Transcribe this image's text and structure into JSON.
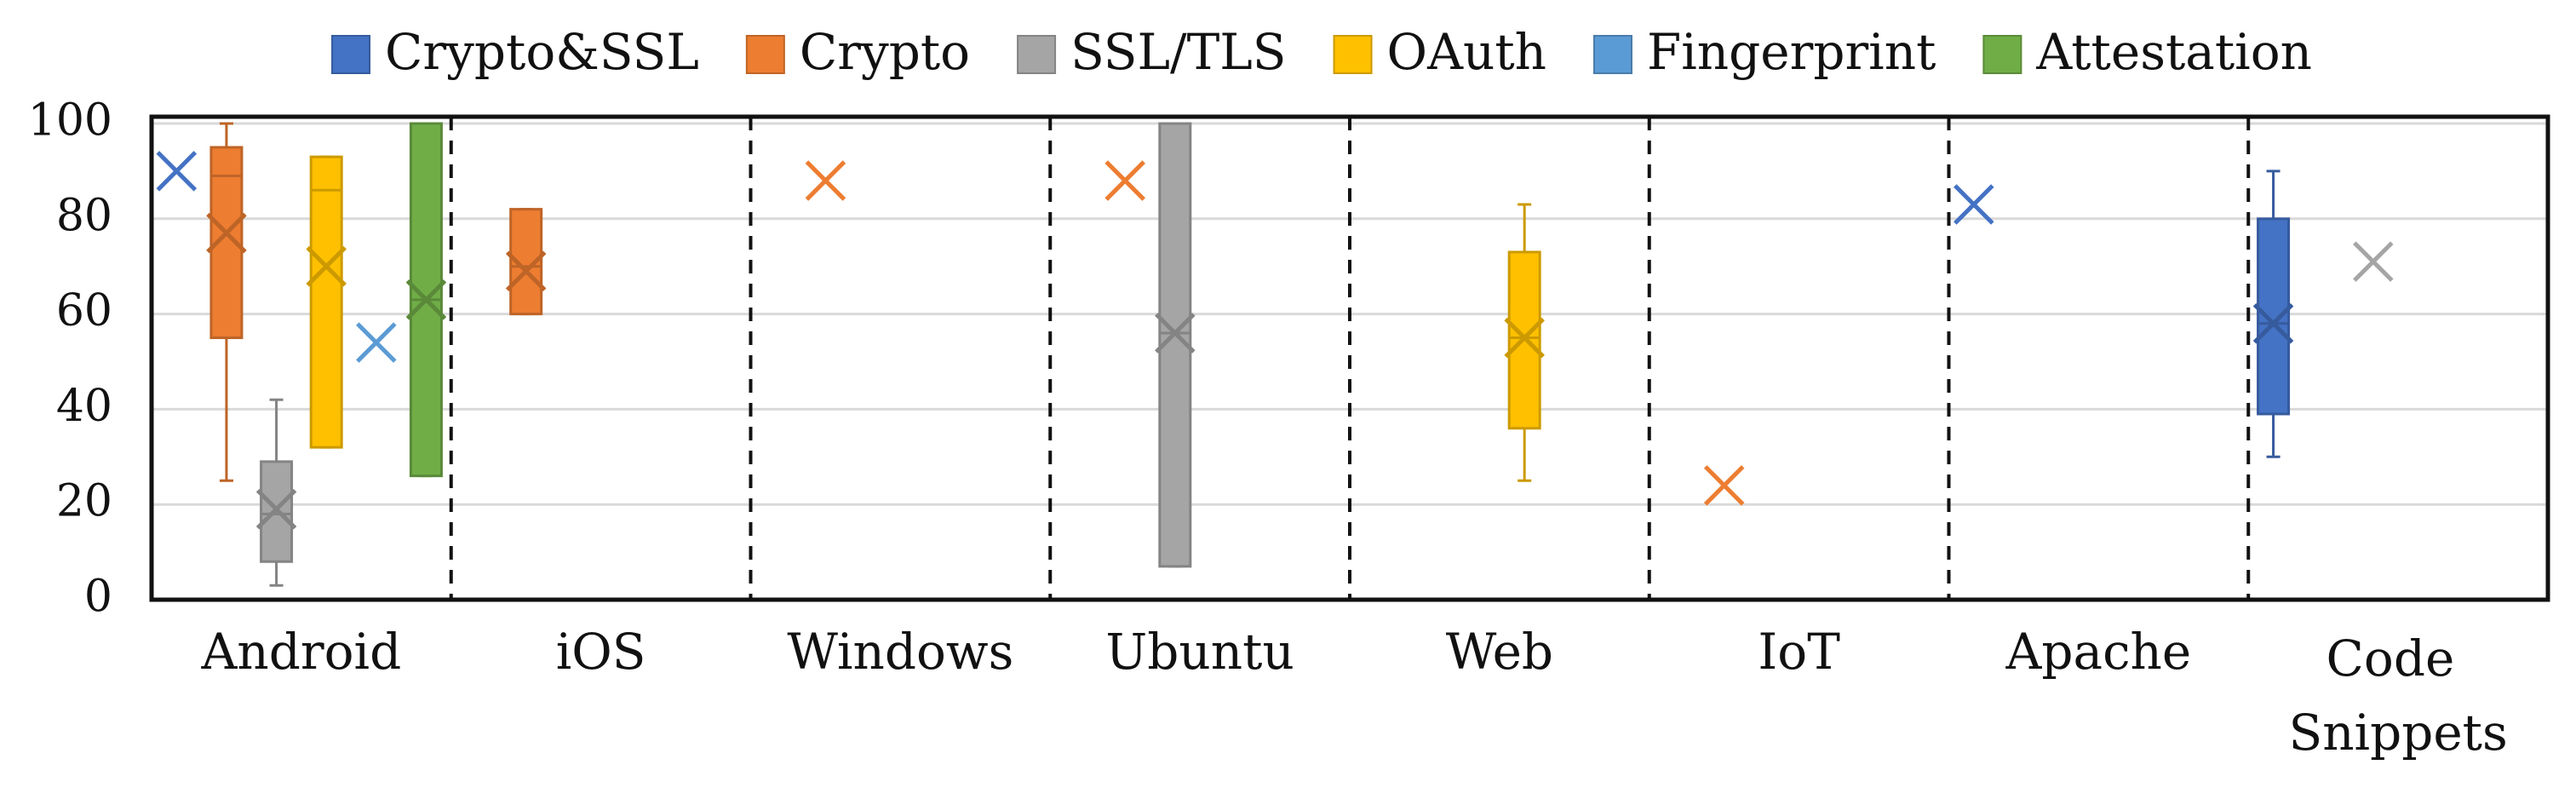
{
  "chart_data": {
    "type": "box",
    "categories": [
      "Android",
      "iOS",
      "Windows",
      "Ubuntu",
      "Web",
      "IoT",
      "Apache",
      "Code Snippets"
    ],
    "ylim": [
      0,
      100
    ],
    "yticks": [
      0,
      20,
      40,
      60,
      80,
      100
    ],
    "grid": true,
    "legend": "top",
    "series": [
      {
        "name": "Crypto&SSL",
        "color": "#4472c4",
        "values": [
          {
            "mean": 90
          },
          null,
          null,
          null,
          null,
          null,
          {
            "mean": 83
          },
          {
            "min": 30,
            "q1": 39,
            "median": 58,
            "q3": 80,
            "max": 90,
            "mean": 58
          }
        ]
      },
      {
        "name": "Crypto",
        "color": "#ed7d31",
        "values": [
          {
            "min": 25,
            "q1": 55,
            "median": 89,
            "q3": 95,
            "max": 100,
            "mean": 77
          },
          {
            "min": 60,
            "q1": 60,
            "median": 70,
            "q3": 82,
            "max": 82,
            "mean": 69
          },
          {
            "mean": 88
          },
          {
            "mean": 88
          },
          null,
          {
            "mean": 24
          },
          null,
          null
        ]
      },
      {
        "name": "SSL/TLS",
        "color": "#a5a5a5",
        "values": [
          {
            "min": 3,
            "q1": 8,
            "median": 18,
            "q3": 29,
            "max": 42,
            "mean": 19
          },
          null,
          null,
          {
            "min": 7,
            "q1": 7,
            "median": 56,
            "q3": 100,
            "max": 100,
            "mean": 56
          },
          null,
          null,
          null,
          {
            "mean": 71
          }
        ]
      },
      {
        "name": "OAuth",
        "color": "#ffc000",
        "values": [
          {
            "min": 32,
            "q1": 32,
            "median": 86,
            "q3": 93,
            "max": 93,
            "mean": 70
          },
          null,
          null,
          null,
          {
            "min": 25,
            "q1": 36,
            "median": 55,
            "q3": 73,
            "max": 83,
            "mean": 55
          },
          null,
          null,
          null
        ]
      },
      {
        "name": "Fingerprint",
        "color": "#5b9bd5",
        "values": [
          {
            "mean": 54
          },
          null,
          null,
          null,
          null,
          null,
          null,
          null
        ]
      },
      {
        "name": "Attestation",
        "color": "#70ad47",
        "values": [
          {
            "min": 26,
            "q1": 26,
            "median": 63,
            "q3": 100,
            "max": 100,
            "mean": 63
          },
          null,
          null,
          null,
          null,
          null,
          null,
          null
        ]
      }
    ]
  }
}
